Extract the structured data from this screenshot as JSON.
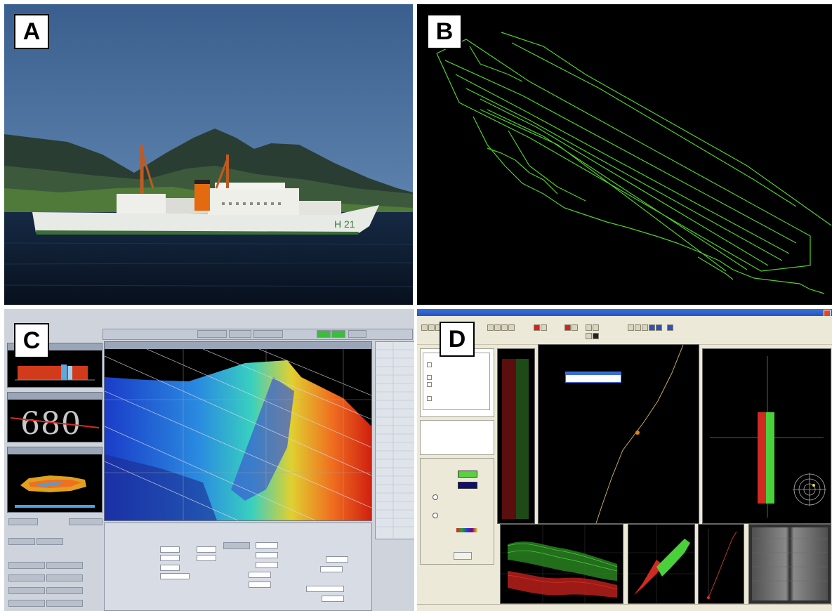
{
  "panels": {
    "a": {
      "label": "A"
    },
    "b": {
      "label": "B"
    },
    "c": {
      "label": "C",
      "depth_readout": "680"
    },
    "d": {
      "label": "D"
    }
  },
  "ship": {
    "hull_number": "H 21"
  },
  "colors": {
    "survey_lines": "#4fd02a",
    "sky": "#3f6a9c",
    "sea": "#0c1a2c",
    "green_series": "#36d32a",
    "red_series": "#d02a22",
    "xp_titlebar": "#2456c4"
  },
  "icons": [
    "close-icon",
    "toolbar-icons",
    "compass-icon"
  ]
}
